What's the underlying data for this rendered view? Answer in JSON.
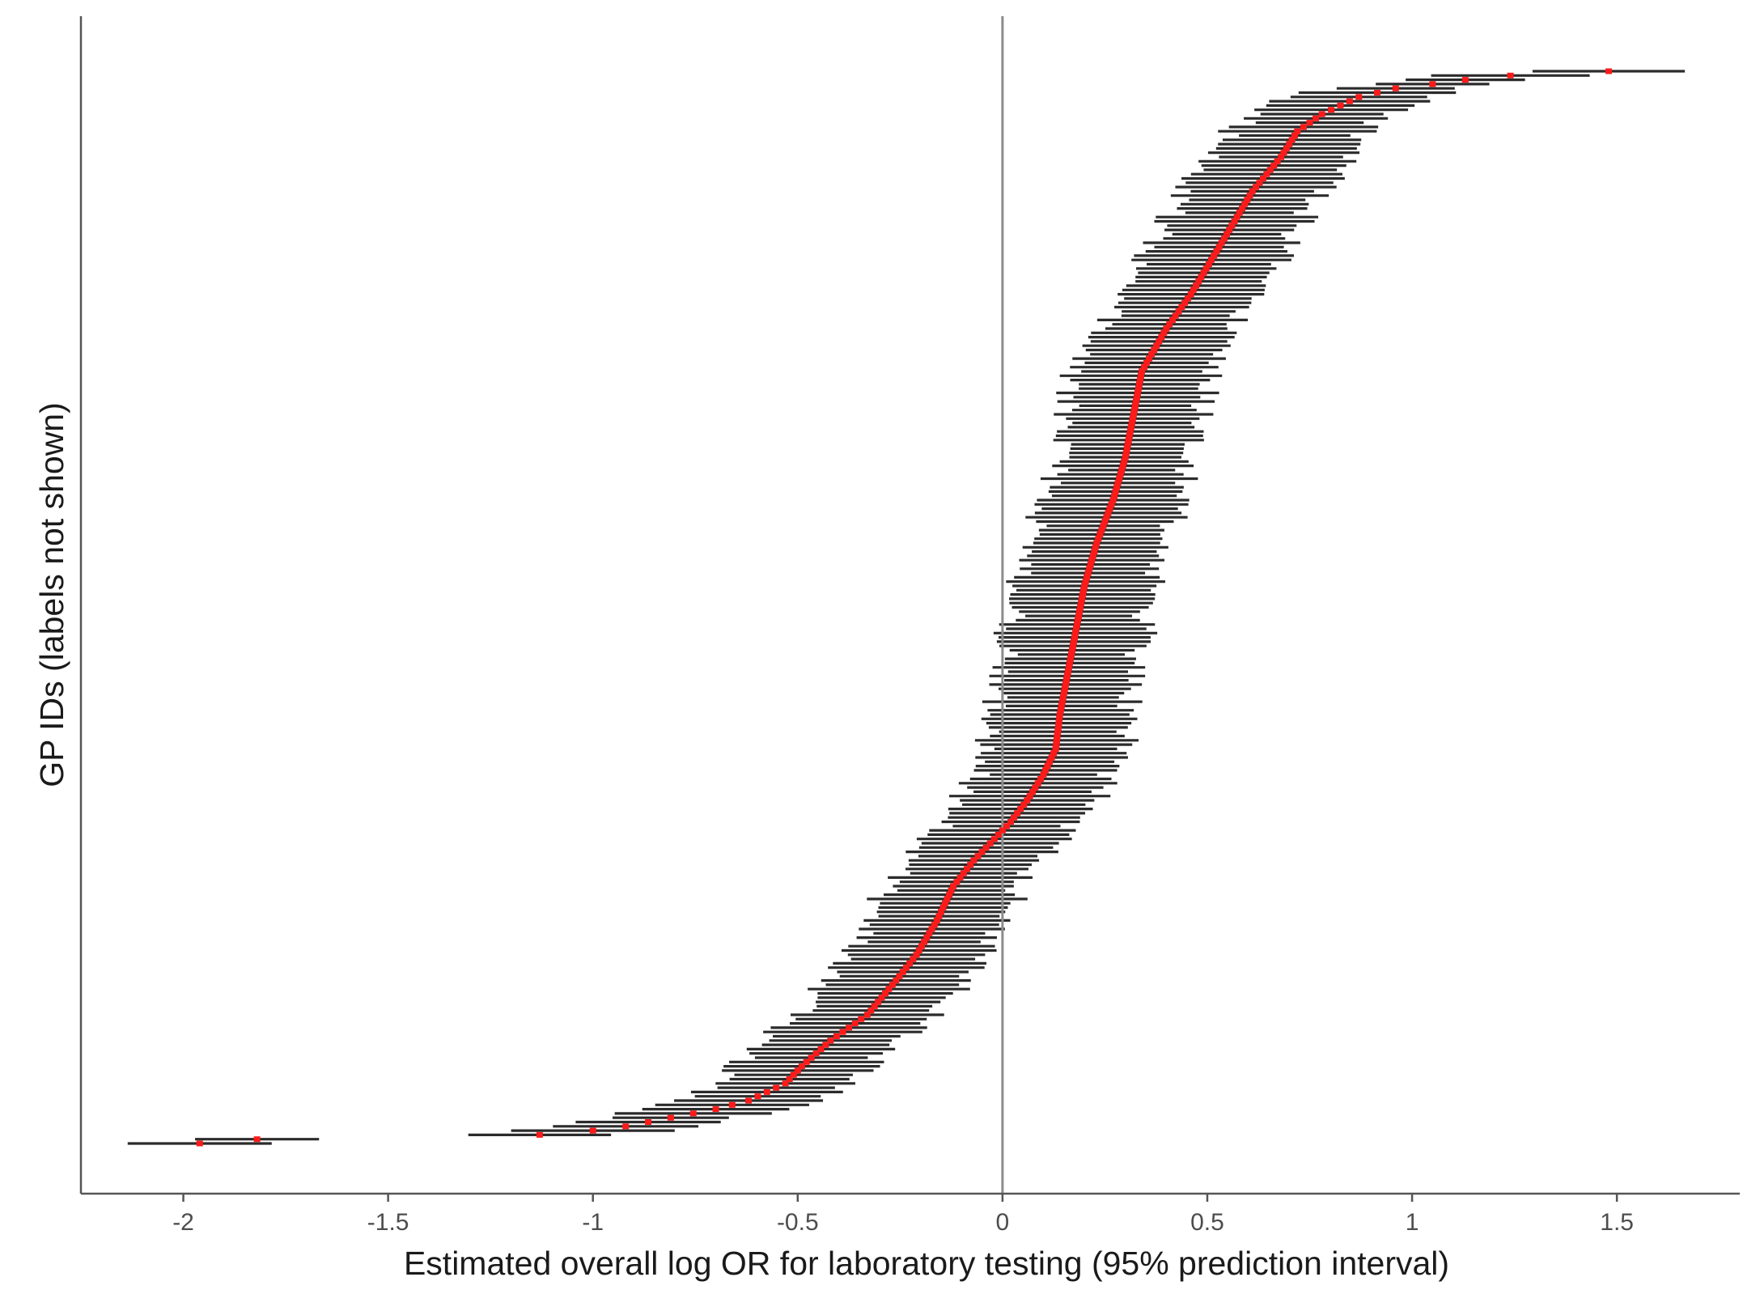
{
  "chart_data": {
    "type": "forest",
    "title": "",
    "xlabel": "Estimated overall log OR for laboratory testing (95% prediction interval)",
    "ylabel": "GP IDs (labels not shown)",
    "xlim": [
      -2.25,
      1.8
    ],
    "xticks": [
      -2,
      -1.5,
      -1,
      -0.5,
      0,
      0.5,
      1,
      1.5
    ],
    "xtick_labels": [
      "-2",
      "-1.5",
      "-1",
      "-0.5",
      "0",
      "0.5",
      "1",
      "1.5"
    ],
    "reference_line_x": 0,
    "grid": false,
    "n_gps": 250,
    "quantile_knots": [
      [
        0,
        -1.96
      ],
      [
        1,
        -1.82
      ],
      [
        2,
        -1.13
      ],
      [
        3,
        -1.0
      ],
      [
        4,
        -0.92
      ],
      [
        6,
        -0.81
      ],
      [
        8,
        -0.7
      ],
      [
        10,
        -0.62
      ],
      [
        14,
        -0.53
      ],
      [
        18,
        -0.49
      ],
      [
        24,
        -0.42
      ],
      [
        30,
        -0.33
      ],
      [
        38,
        -0.26
      ],
      [
        44,
        -0.21
      ],
      [
        52,
        -0.16
      ],
      [
        60,
        -0.12
      ],
      [
        66,
        -0.07
      ],
      [
        70,
        -0.03
      ],
      [
        75,
        0.02
      ],
      [
        80,
        0.06
      ],
      [
        86,
        0.1
      ],
      [
        92,
        0.13
      ],
      [
        100,
        0.14
      ],
      [
        110,
        0.16
      ],
      [
        120,
        0.18
      ],
      [
        130,
        0.2
      ],
      [
        140,
        0.23
      ],
      [
        150,
        0.27
      ],
      [
        160,
        0.3
      ],
      [
        170,
        0.32
      ],
      [
        180,
        0.34
      ],
      [
        190,
        0.4
      ],
      [
        198,
        0.46
      ],
      [
        206,
        0.51
      ],
      [
        214,
        0.56
      ],
      [
        222,
        0.61
      ],
      [
        230,
        0.68
      ],
      [
        236,
        0.72
      ],
      [
        240,
        0.78
      ],
      [
        244,
        0.87
      ],
      [
        246,
        0.96
      ],
      [
        247,
        1.05
      ],
      [
        248,
        1.13
      ],
      [
        249,
        1.24
      ],
      [
        250,
        1.48
      ]
    ],
    "interval_half_width": [
      0.13,
      0.2
    ],
    "colors": {
      "point": "#ff1a1a",
      "interval": "#2b2b2b",
      "axis": "#555555",
      "reference_line": "#8c8c8c"
    }
  }
}
